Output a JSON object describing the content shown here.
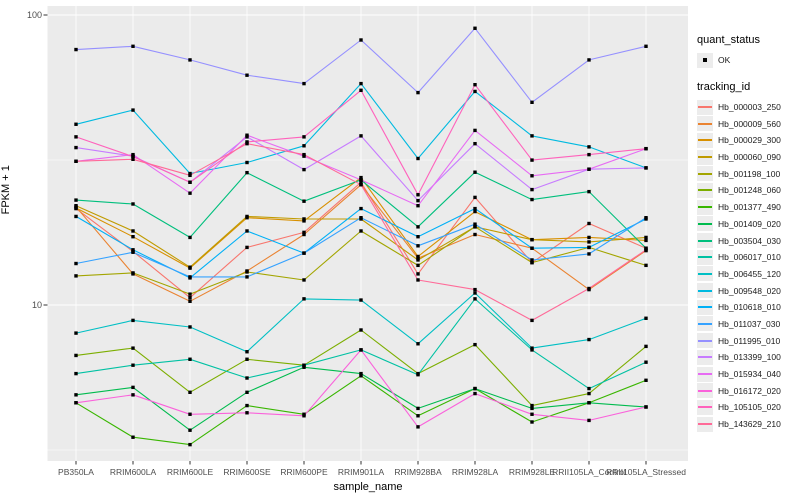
{
  "figure": {
    "y_axis_title": "FPKM + 1",
    "x_axis_title": "sample_name",
    "legend": {
      "quant_status_title": "quant_status",
      "quant_status_items": [
        {
          "label": "OK",
          "marker": "black-point"
        }
      ],
      "tracking_id_title": "tracking_id"
    }
  },
  "chart_data": {
    "type": "line",
    "title": "",
    "xlabel": "sample_name",
    "ylabel": "FPKM + 1",
    "y_scale": "log10",
    "y_ticks": [
      100,
      10
    ],
    "y_minor_ticks": [
      31.62,
      3.162
    ],
    "ylim": [
      2.8,
      110
    ],
    "grid": true,
    "legend_position": "right",
    "marker": "black-square",
    "panel_bg": "#EBEBEB",
    "grid_color": "#FFFFFF",
    "axis_text_color": "#4D4D4D",
    "x": [
      "PB350LA",
      "RRIM600LA",
      "RRIM600LE",
      "RRIM600SE",
      "RRIM600PE",
      "RRIM901LA",
      "RRIM928BA",
      "RRIM928LA",
      "RRIM928LE",
      "RRII105LA_Control",
      "RRII105LA_Stressed"
    ],
    "series": [
      {
        "name": "Hb_000003_250",
        "color": "#F8766D",
        "values": [
          21.5,
          15.3,
          10.6,
          15.8,
          17.8,
          26.5,
          12.8,
          23.5,
          14.0,
          19.1,
          15.7
        ]
      },
      {
        "name": "Hb_000009_560",
        "color": "#EA8331",
        "values": [
          21.8,
          12.8,
          10.3,
          13.1,
          17.5,
          26.0,
          14.5,
          17.5,
          15.7,
          11.3,
          15.4
        ]
      },
      {
        "name": "Hb_000029_300",
        "color": "#D89000",
        "values": [
          21.6,
          17.2,
          13.4,
          20.0,
          19.5,
          27.5,
          14.7,
          21.0,
          16.8,
          17.1,
          16.7
        ]
      },
      {
        "name": "Hb_000060_090",
        "color": "#C09B00",
        "values": [
          22.0,
          18.0,
          13.5,
          20.2,
          19.8,
          19.8,
          14.3,
          18.6,
          16.8,
          16.5,
          17.1
        ]
      },
      {
        "name": "Hb_001198_100",
        "color": "#A3A500",
        "values": [
          12.6,
          12.9,
          10.9,
          13.0,
          12.2,
          18.0,
          13.7,
          18.6,
          14.0,
          15.8,
          13.7
        ]
      },
      {
        "name": "Hb_001248_060",
        "color": "#7CAE00",
        "values": [
          6.7,
          7.1,
          5.0,
          6.5,
          6.2,
          8.2,
          5.8,
          7.3,
          4.5,
          4.95,
          7.2
        ]
      },
      {
        "name": "Hb_001377_490",
        "color": "#39B600",
        "values": [
          4.6,
          3.5,
          3.3,
          4.5,
          4.2,
          5.7,
          4.15,
          5.15,
          3.95,
          4.6,
          5.5
        ]
      },
      {
        "name": "Hb_001409_020",
        "color": "#00BB4E",
        "values": [
          4.9,
          5.2,
          3.7,
          5.0,
          6.1,
          5.8,
          4.4,
          5.15,
          4.4,
          4.6,
          4.45
        ]
      },
      {
        "name": "Hb_003504_030",
        "color": "#00BF7D",
        "values": [
          23.0,
          22.3,
          17.1,
          28.6,
          22.8,
          27.0,
          18.6,
          28.7,
          23.1,
          24.6,
          15.7
        ]
      },
      {
        "name": "Hb_006017_010",
        "color": "#00C1A3",
        "values": [
          5.8,
          6.2,
          6.5,
          5.6,
          6.2,
          7.0,
          5.75,
          10.5,
          7.0,
          5.15,
          6.35
        ]
      },
      {
        "name": "Hb_006455_120",
        "color": "#00BFC4",
        "values": [
          8.0,
          8.85,
          8.4,
          6.9,
          10.5,
          10.4,
          7.35,
          11.0,
          7.1,
          7.6,
          9.0
        ]
      },
      {
        "name": "Hb_009548_020",
        "color": "#00BAE0",
        "values": [
          42.0,
          47.0,
          28.4,
          31.0,
          35.4,
          58.0,
          32.0,
          54.5,
          38.3,
          35.1,
          29.7
        ]
      },
      {
        "name": "Hb_010618_010",
        "color": "#00B0F6",
        "values": [
          20.2,
          15.5,
          12.4,
          18.0,
          15.1,
          21.5,
          17.2,
          21.5,
          15.7,
          15.8,
          19.8
        ]
      },
      {
        "name": "Hb_011037_030",
        "color": "#35A2FF",
        "values": [
          13.9,
          15.2,
          12.5,
          12.5,
          15.1,
          20.0,
          16.0,
          19.0,
          14.3,
          15.0,
          20.0
        ]
      },
      {
        "name": "Hb_011995_010",
        "color": "#9590FF",
        "values": [
          76,
          78,
          70,
          62,
          58,
          82,
          54,
          90,
          50,
          70,
          78
        ]
      },
      {
        "name": "Hb_013399_100",
        "color": "#C77CFF",
        "values": [
          34.9,
          32.6,
          26.5,
          38.0,
          29.3,
          38.3,
          22.9,
          36.0,
          25.0,
          29.4,
          29.7
        ]
      },
      {
        "name": "Hb_015934_040",
        "color": "#E76BF3",
        "values": [
          31.3,
          33.0,
          24.3,
          38.5,
          32.6,
          27.0,
          22.0,
          40.0,
          27.9,
          29.4,
          34.6
        ]
      },
      {
        "name": "Hb_016172_020",
        "color": "#FA62DB",
        "values": [
          4.6,
          4.9,
          4.2,
          4.25,
          4.15,
          7.0,
          3.8,
          4.95,
          4.2,
          4.0,
          4.45
        ]
      },
      {
        "name": "Hb_105105_020",
        "color": "#FF62BC",
        "values": [
          38.0,
          32.5,
          26.5,
          36.5,
          38.0,
          55.0,
          24.0,
          57.5,
          31.6,
          33.0,
          34.6
        ]
      },
      {
        "name": "Hb_143629_210",
        "color": "#FF6A98",
        "values": [
          31.3,
          31.8,
          28.0,
          36.0,
          33.0,
          26.0,
          12.2,
          11.3,
          8.85,
          11.4,
          15.5
        ]
      }
    ]
  }
}
